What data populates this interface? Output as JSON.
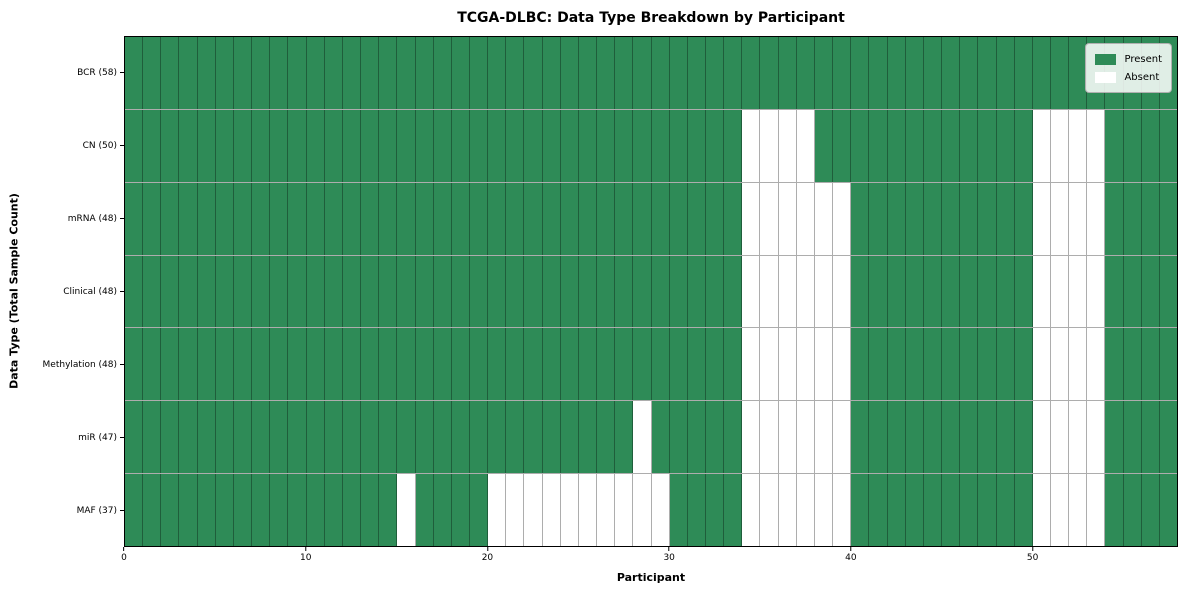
{
  "title": "TCGA-DLBC: Data Type Breakdown by Participant",
  "chart_data": {
    "type": "heatmap",
    "title": "TCGA-DLBC: Data Type Breakdown by Participant",
    "xlabel": "Participant",
    "ylabel": "Data Type (Total Sample Count)",
    "xlim": [
      0,
      58
    ],
    "n_participants": 58,
    "x_ticks": [
      0,
      10,
      20,
      30,
      40,
      50
    ],
    "grid": true,
    "legend_position": "upper right",
    "legend": [
      {
        "label": "Present",
        "color": "#2e8b57"
      },
      {
        "label": "Absent",
        "color": "#ffffff"
      }
    ],
    "colors": {
      "present": "#2e8b57",
      "absent": "#ffffff"
    },
    "rows": [
      {
        "data_type": "BCR",
        "label": "BCR (58)",
        "total_samples": 58,
        "absent_participants": []
      },
      {
        "data_type": "CN",
        "label": "CN (50)",
        "total_samples": 50,
        "absent_participants": [
          34,
          35,
          36,
          37,
          50,
          51,
          52,
          53
        ]
      },
      {
        "data_type": "mRNA",
        "label": "mRNA (48)",
        "total_samples": 48,
        "absent_participants": [
          34,
          35,
          36,
          37,
          38,
          39,
          50,
          51,
          52,
          53
        ]
      },
      {
        "data_type": "Clinical",
        "label": "Clinical (48)",
        "total_samples": 48,
        "absent_participants": [
          34,
          35,
          36,
          37,
          38,
          39,
          50,
          51,
          52,
          53
        ]
      },
      {
        "data_type": "Methylation",
        "label": "Methylation (48)",
        "total_samples": 48,
        "absent_participants": [
          34,
          35,
          36,
          37,
          38,
          39,
          50,
          51,
          52,
          53
        ]
      },
      {
        "data_type": "miR",
        "label": "miR (47)",
        "total_samples": 47,
        "absent_participants": [
          28,
          34,
          35,
          36,
          37,
          38,
          39,
          50,
          51,
          52,
          53
        ]
      },
      {
        "data_type": "MAF",
        "label": "MAF (37)",
        "total_samples": 37,
        "absent_participants": [
          15,
          20,
          21,
          22,
          23,
          24,
          25,
          26,
          27,
          28,
          29,
          34,
          35,
          36,
          37,
          38,
          39,
          50,
          51,
          52,
          53
        ]
      }
    ]
  }
}
